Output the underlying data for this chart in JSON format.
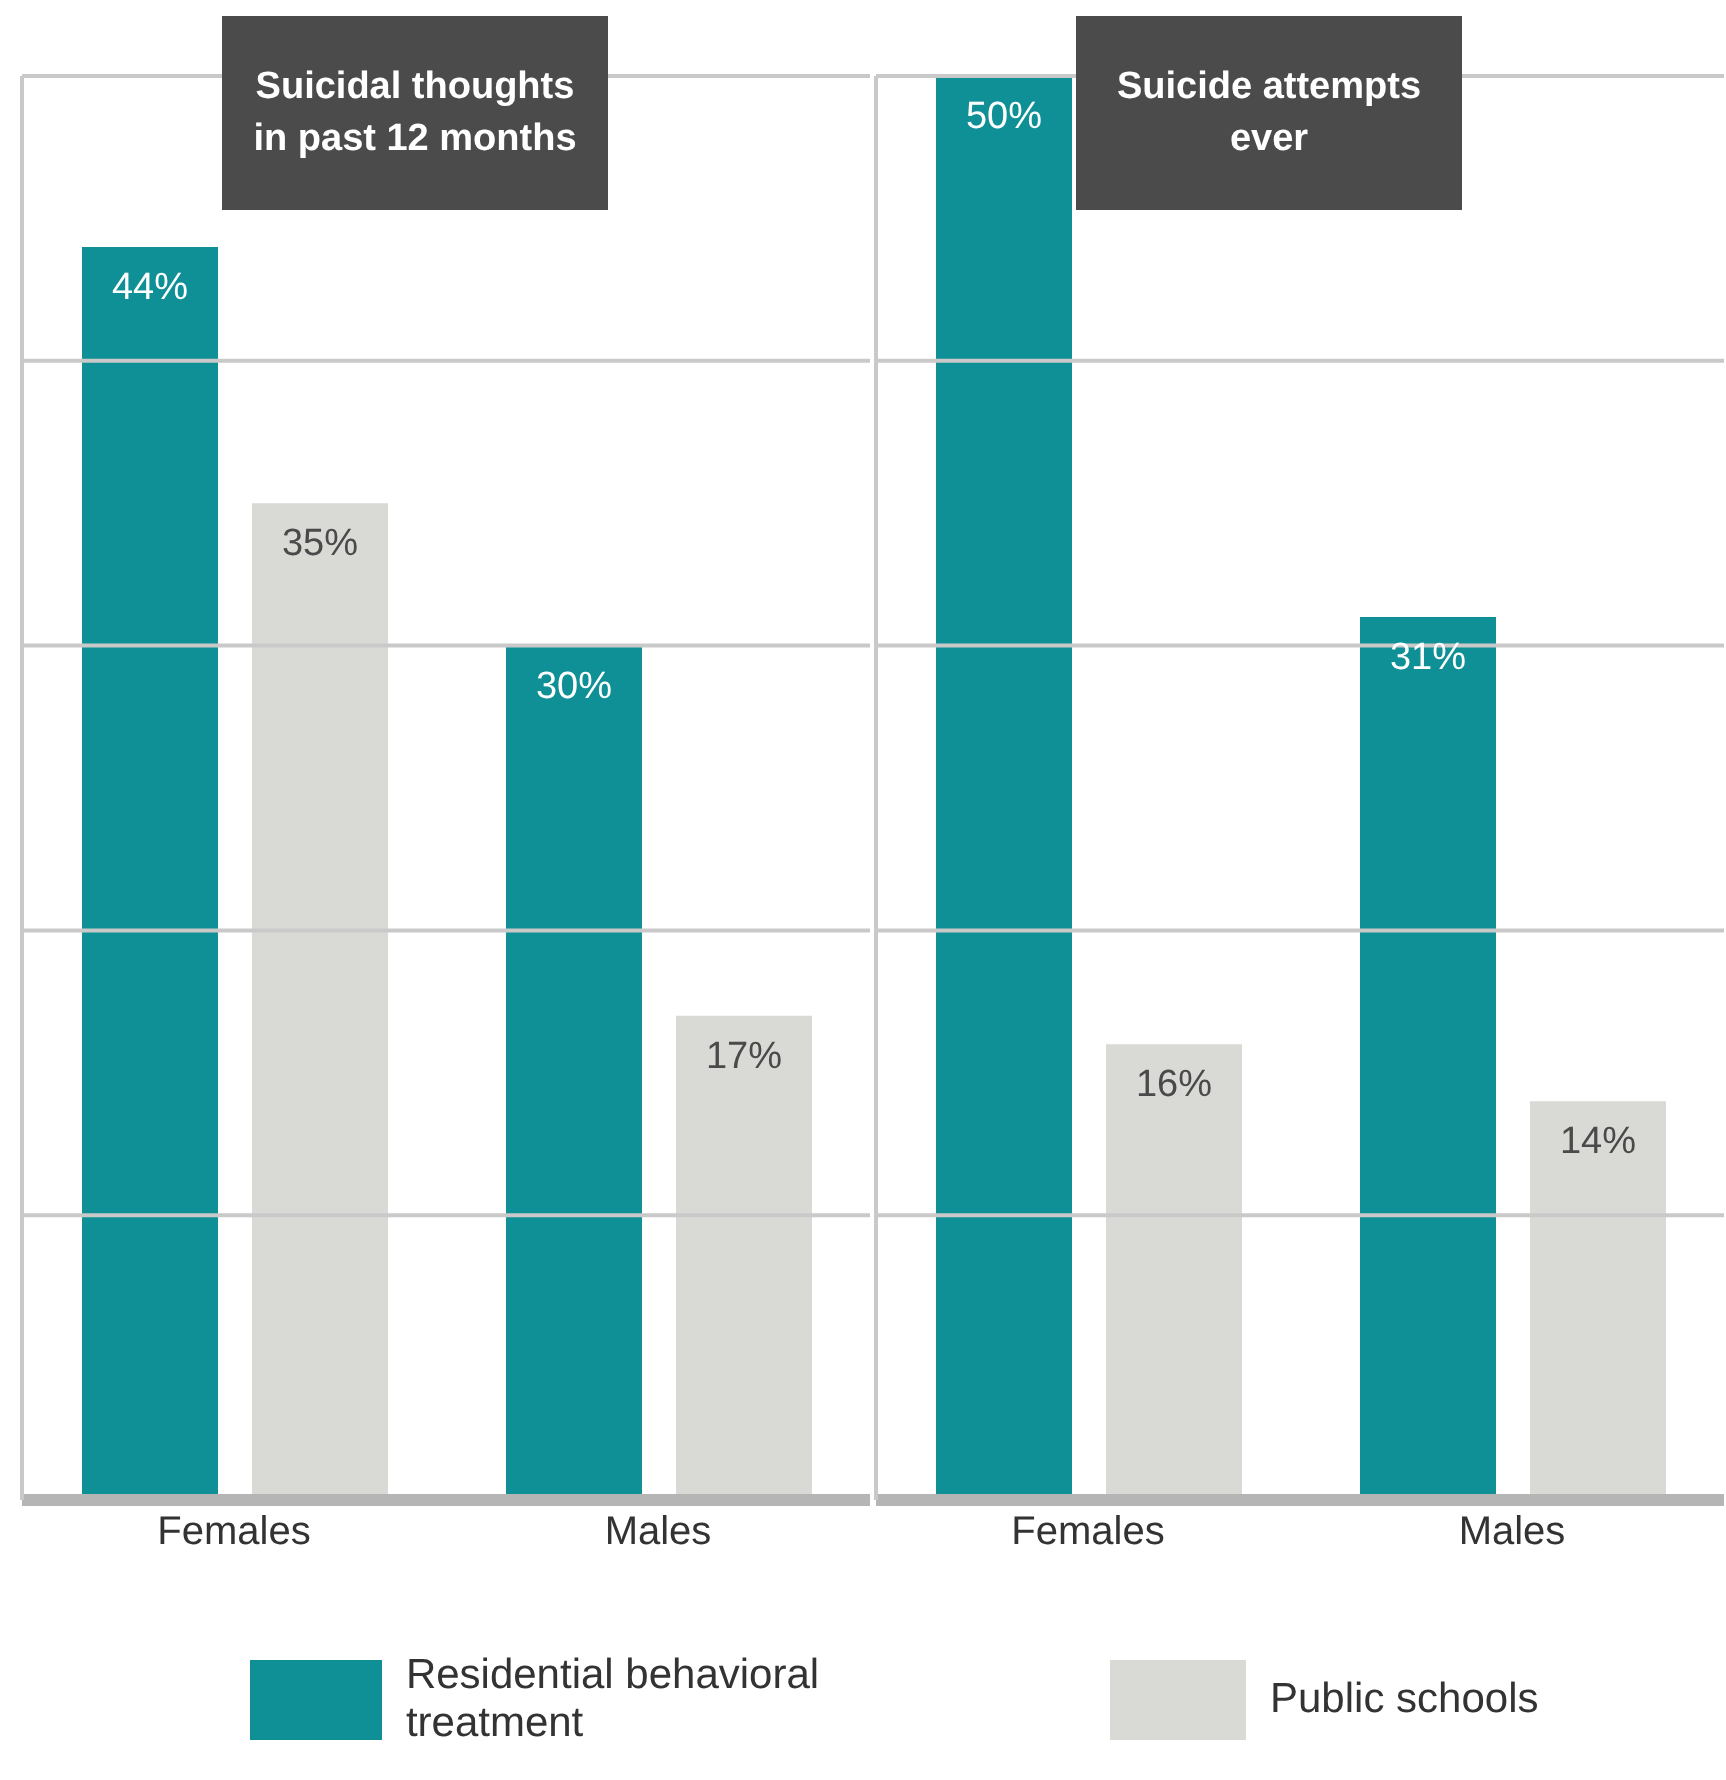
{
  "chart_data": [
    {
      "type": "bar",
      "title": "Suicidal thoughts in past 12 months",
      "categories": [
        "Females",
        "Males"
      ],
      "series": [
        {
          "name": "Residential behavioral treatment",
          "color": "#0e9096",
          "values": [
            44,
            30
          ],
          "value_labels": [
            "44%",
            "30%"
          ]
        },
        {
          "name": "Public schools",
          "color": "#d9d9d6",
          "values": [
            35,
            17
          ],
          "value_labels": [
            "35%",
            "17%"
          ]
        }
      ],
      "ylim": [
        0,
        50
      ],
      "yticks": [
        {
          "value": 0,
          "label": null
        },
        {
          "value": 10,
          "label": null
        },
        {
          "value": 20,
          "label": null
        },
        {
          "value": 30,
          "label": null
        },
        {
          "value": 40,
          "label": null
        },
        {
          "value": 50,
          "label": null
        }
      ],
      "grid": "y",
      "tick_labels": "x",
      "legend": "bottom"
    },
    {
      "type": "bar",
      "title": "Suicide attempts ever",
      "categories": [
        "Females",
        "Males"
      ],
      "series": [
        {
          "color": "#0e9096",
          "values": [
            50,
            31
          ],
          "value_labels": [
            "50%",
            "31%"
          ]
        },
        {
          "color": "#d9d9d6",
          "values": [
            16,
            14
          ],
          "value_labels": [
            "16%",
            "14%"
          ]
        }
      ],
      "ylim": [
        0,
        50
      ],
      "yticks": [
        {
          "value": 0,
          "label": null
        },
        {
          "value": 10,
          "label": null
        },
        {
          "value": 20,
          "label": null
        },
        {
          "value": 30,
          "label": null
        },
        {
          "value": 40,
          "label": null
        },
        {
          "value": 50,
          "label": null
        }
      ],
      "grid": "y",
      "tick_labels": "x"
    }
  ]
}
